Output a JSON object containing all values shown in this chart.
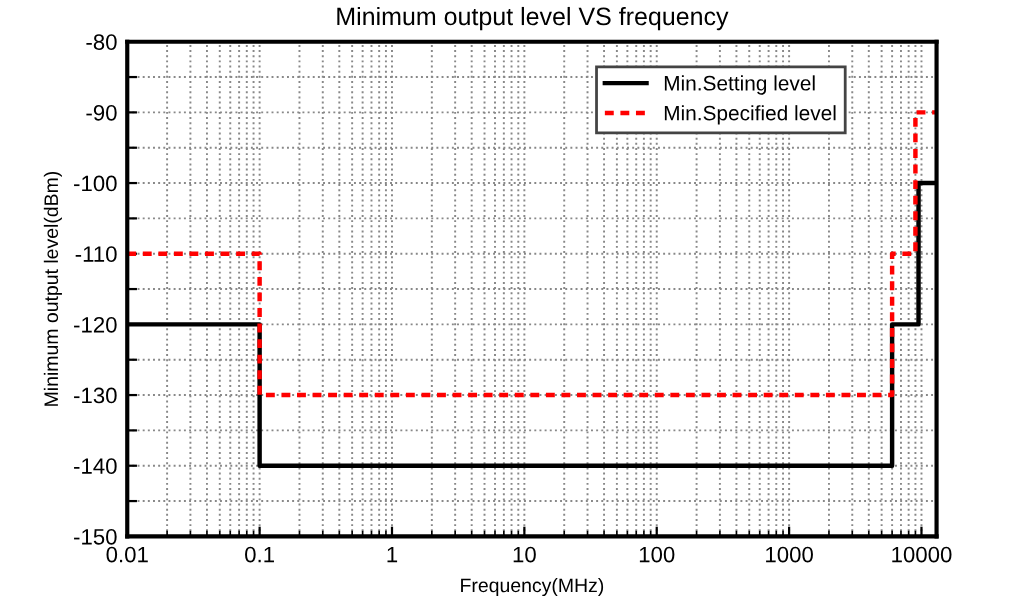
{
  "chart_data": {
    "type": "step",
    "title": "Minimum output level VS frequency",
    "xlabel": "Frequency(MHz)",
    "ylabel": "Minimum output level(dBm)",
    "log": "x",
    "xlim": [
      0.01,
      13000
    ],
    "xticks": [
      0.01,
      0.1,
      1,
      10,
      100,
      1000,
      10000
    ],
    "ylim": [
      -150,
      -80
    ],
    "yticks": [
      -150,
      {
        "value": -145,
        "label": null
      },
      -140,
      {
        "value": -135,
        "label": null
      },
      -130,
      {
        "value": -125,
        "label": null
      },
      -120,
      {
        "value": -115,
        "label": null
      },
      -110,
      {
        "value": -105,
        "label": null
      },
      -100,
      {
        "value": -95,
        "label": null
      },
      -90,
      {
        "value": -85,
        "label": null
      },
      -80
    ],
    "grid": true,
    "legend": "top right",
    "series": [
      {
        "name": "Min.Setting level",
        "color": "#000000",
        "line_style": "solid",
        "x": [
          0.01,
          0.1,
          6000,
          9500,
          13000
        ],
        "values": [
          -120,
          -140,
          -120,
          -100,
          -100
        ]
      },
      {
        "name": "Min.Specified level",
        "color": "#ff0000",
        "line_style": "dashed",
        "x": [
          0.01,
          0.1,
          6000,
          9000,
          13000
        ],
        "values": [
          -110,
          -130,
          -110,
          -90,
          -90
        ]
      }
    ]
  }
}
